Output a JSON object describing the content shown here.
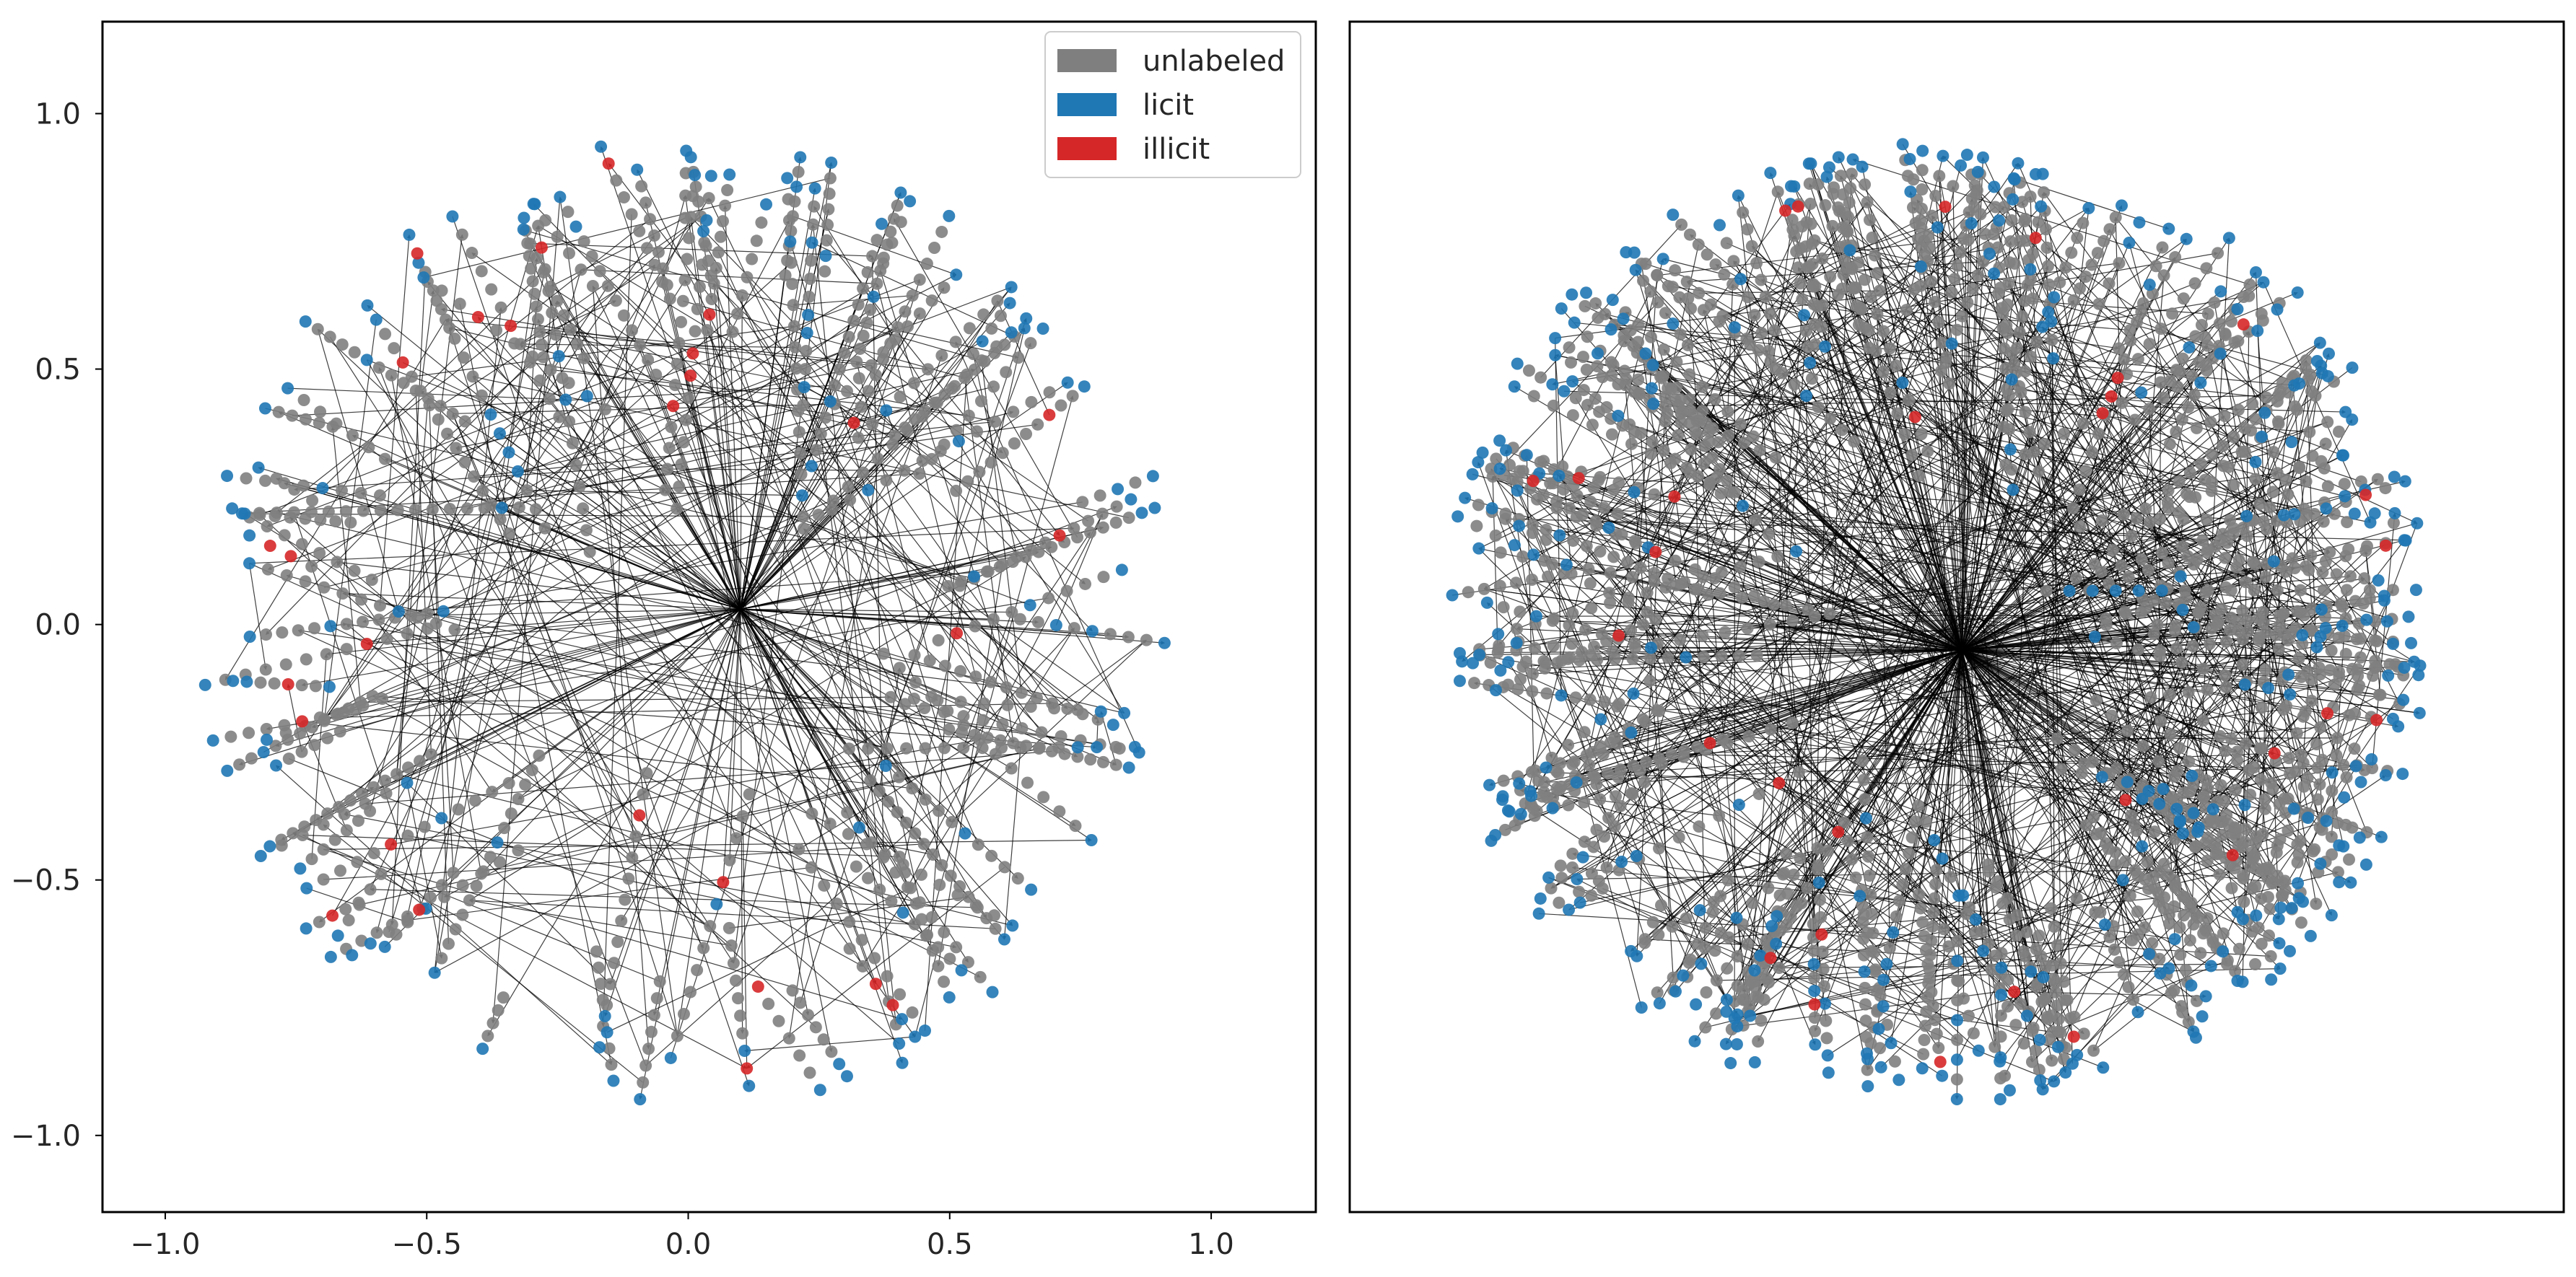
{
  "chart_data": [
    {
      "type": "scatter",
      "subtype": "network-graph",
      "title": "",
      "xlabel": "",
      "ylabel": "",
      "xlim": [
        -1.12,
        1.2
      ],
      "ylim": [
        -1.15,
        1.18
      ],
      "x_ticks": [
        -1.0,
        -0.5,
        0.0,
        0.5,
        1.0
      ],
      "y_ticks": [
        1.0,
        0.5,
        0.0,
        -0.5,
        -1.0
      ],
      "x_tick_labels": [
        "−1.0",
        "−0.5",
        "0.0",
        "0.5",
        "1.0"
      ],
      "y_tick_labels": [
        "1.0",
        "0.5",
        "0.0",
        "−0.5",
        "−1.0"
      ],
      "grid": false,
      "legend": {
        "placement": "top-right",
        "entries": [
          {
            "label": "unlabeled",
            "color": "#7f7f7f"
          },
          {
            "label": "licit",
            "color": "#1f77b4"
          },
          {
            "label": "illicit",
            "color": "#d62728"
          }
        ]
      },
      "hub": [
        0.1,
        0.03
      ],
      "approx_node_counts": {
        "unlabeled": 620,
        "licit": 150,
        "illicit": 28
      },
      "layout_radius": 0.97
    },
    {
      "type": "scatter",
      "subtype": "network-graph",
      "title": "",
      "axes_visible": false,
      "grid": false,
      "hub": [
        0.05,
        -0.05
      ],
      "approx_node_counts": {
        "unlabeled": 1350,
        "licit": 380,
        "illicit": 30
      },
      "layout_radius": 0.97
    }
  ],
  "colors": {
    "unlabeled": "#7f7f7f",
    "licit": "#1f77b4",
    "illicit": "#d62728",
    "edge": "#000000"
  }
}
